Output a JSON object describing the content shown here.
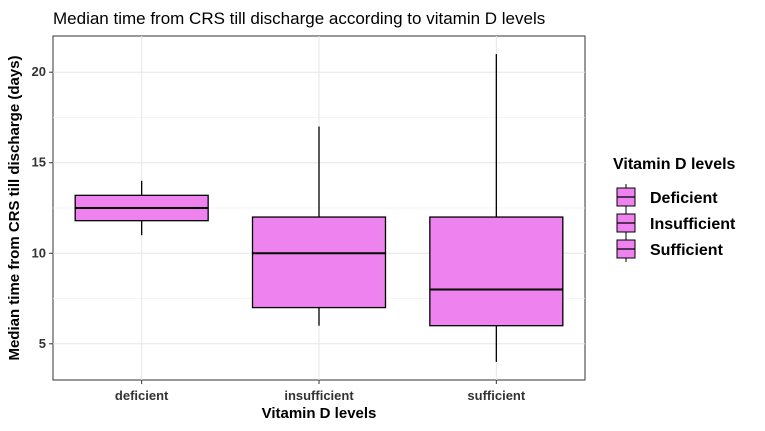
{
  "chart_data": {
    "type": "box",
    "title": "Median time from CRS till discharge according to vitamin D levels",
    "xlabel": "Vitamin D levels",
    "ylabel": "Median time from CRS till discharge (days)",
    "ylim": [
      3,
      22
    ],
    "yticks": [
      5,
      10,
      15,
      20
    ],
    "grid": true,
    "categories": [
      "deficient",
      "insufficient",
      "sufficient"
    ],
    "boxes": [
      {
        "category": "deficient",
        "min": 11,
        "q1": 11.8,
        "median": 12.5,
        "q3": 13.2,
        "max": 14
      },
      {
        "category": "insufficient",
        "min": 6,
        "q1": 7,
        "median": 10,
        "q3": 12,
        "max": 17
      },
      {
        "category": "sufficient",
        "min": 4,
        "q1": 6,
        "median": 8,
        "q3": 12,
        "max": 21
      }
    ],
    "fill_color": "#EE82EE",
    "line_color": "#000000",
    "legend": {
      "title": "Vitamin D levels",
      "entries": [
        "Deficient",
        "Insufficient",
        "Sufficient"
      ],
      "position": "right"
    }
  }
}
